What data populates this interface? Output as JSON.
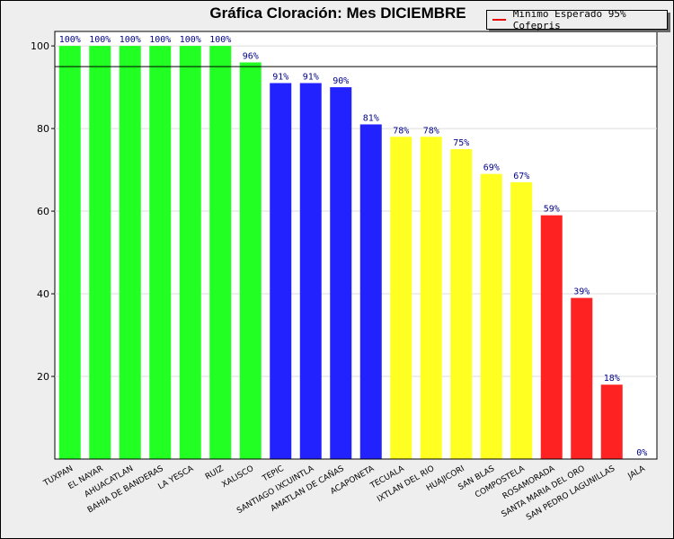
{
  "chart_data": {
    "type": "bar",
    "title": "Gráfica Cloración: Mes DICIEMBRE",
    "categories": [
      "TUXPAN",
      "EL NAYAR",
      "AHUACATLAN",
      "BAHIA DE BANDERAS",
      "LA YESCA",
      "RUIZ",
      "XALISCO",
      "TEPIC",
      "SANTIAGO IXCUINTLA",
      "AMATLAN DE CAÑAS",
      "ACAPONETA",
      "TECUALA",
      "IXTLAN DEL RIO",
      "HUAJICORI",
      "SAN BLAS",
      "COMPOSTELA",
      "ROSAMORADA",
      "SANTA MARIA DEL ORO",
      "SAN PEDRO LAGUNILLAS",
      "JALA"
    ],
    "values": [
      100,
      100,
      100,
      100,
      100,
      100,
      96,
      91,
      91,
      90,
      81,
      78,
      78,
      75,
      69,
      67,
      59,
      39,
      18,
      0
    ],
    "labels": [
      "100%",
      "100%",
      "100%",
      "100%",
      "100%",
      "100%",
      "96%",
      "91%",
      "91%",
      "90%",
      "81%",
      "78%",
      "78%",
      "75%",
      "69%",
      "67%",
      "59%",
      "39%",
      "18%",
      "0%"
    ],
    "colors": [
      "#22ff22",
      "#22ff22",
      "#22ff22",
      "#22ff22",
      "#22ff22",
      "#22ff22",
      "#22ff22",
      "#2222ff",
      "#2222ff",
      "#2222ff",
      "#2222ff",
      "#ffff22",
      "#ffff22",
      "#ffff22",
      "#ffff22",
      "#ffff22",
      "#ff2222",
      "#ff2222",
      "#ff2222",
      "#ff2222"
    ],
    "yticks": [
      "20",
      "40",
      "60",
      "80",
      "100"
    ],
    "ytick_values": [
      20,
      40,
      60,
      80,
      100
    ],
    "ylim": [
      0,
      103.5
    ],
    "reference_line": {
      "value": 95,
      "label": "Minimo Esperado 95% Cofepris",
      "legend_color": "#ee0000"
    },
    "legend": "top-right",
    "grid": true
  }
}
